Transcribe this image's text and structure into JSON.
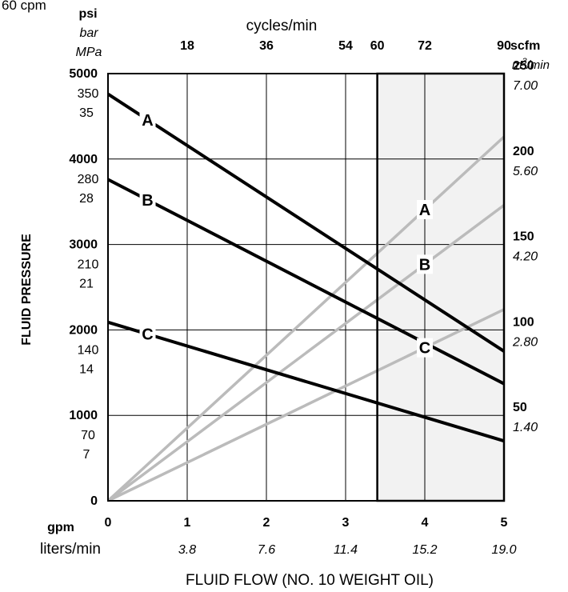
{
  "chart_data": {
    "type": "line",
    "corner_note": "60 cpm",
    "top_axis": {
      "title": "cycles/min",
      "ticks": [
        {
          "label": "18",
          "x": 1
        },
        {
          "label": "36",
          "x": 2
        },
        {
          "label": "54",
          "x": 3
        },
        {
          "label": "60",
          "x": 3.4
        },
        {
          "label": "72",
          "x": 4
        },
        {
          "label": "90",
          "x": 5
        }
      ]
    },
    "x_axis": {
      "title": "FLUID FLOW (NO. 10 WEIGHT OIL)",
      "unit_primary": "gpm",
      "unit_secondary": "liters/min",
      "range": [
        0,
        5
      ],
      "ticks": [
        {
          "value": 0,
          "label": "0",
          "secondary": ""
        },
        {
          "value": 1,
          "label": "1",
          "secondary": "3.8"
        },
        {
          "value": 2,
          "label": "2",
          "secondary": "7.6"
        },
        {
          "value": 3,
          "label": "3",
          "secondary": "11.4"
        },
        {
          "value": 4,
          "label": "4",
          "secondary": "15.2"
        },
        {
          "value": 5,
          "label": "5",
          "secondary": "19.0"
        }
      ]
    },
    "y_left": {
      "title": "FLUID PRESSURE",
      "units": [
        "psi",
        "bar",
        "MPa"
      ],
      "range": [
        0,
        5000
      ],
      "ticks": [
        {
          "value": 0,
          "psi": "0",
          "bar": "",
          "mpa": ""
        },
        {
          "value": 1000,
          "psi": "1000",
          "bar": "70",
          "mpa": "7"
        },
        {
          "value": 2000,
          "psi": "2000",
          "bar": "140",
          "mpa": "14"
        },
        {
          "value": 3000,
          "psi": "3000",
          "bar": "210",
          "mpa": "21"
        },
        {
          "value": 4000,
          "psi": "4000",
          "bar": "280",
          "mpa": "28"
        },
        {
          "value": 5000,
          "psi": "5000",
          "bar": "350",
          "mpa": "35"
        }
      ]
    },
    "y_right": {
      "units": [
        "scfm",
        "m3/min"
      ],
      "range": [
        0,
        250
      ],
      "ticks": [
        {
          "value": 50,
          "scfm": "50",
          "m3": "1.40"
        },
        {
          "value": 100,
          "scfm": "100",
          "m3": "2.80"
        },
        {
          "value": 150,
          "scfm": "150",
          "m3": "4.20"
        },
        {
          "value": 200,
          "scfm": "200",
          "m3": "5.60"
        },
        {
          "value": 250,
          "scfm": "250",
          "m3": "7.00"
        }
      ]
    },
    "shaded_region": {
      "x_from": 3.4,
      "x_to": 5
    },
    "grid": true,
    "series": [
      {
        "name": "A",
        "kind": "pressure",
        "axis": "left",
        "color": "#000000",
        "points": [
          [
            0,
            4760
          ],
          [
            5,
            1750
          ]
        ]
      },
      {
        "name": "B",
        "kind": "pressure",
        "axis": "left",
        "color": "#000000",
        "points": [
          [
            0,
            3760
          ],
          [
            5,
            1370
          ]
        ]
      },
      {
        "name": "C",
        "kind": "pressure",
        "axis": "left",
        "color": "#000000",
        "points": [
          [
            0,
            2090
          ],
          [
            5,
            700
          ]
        ]
      },
      {
        "name": "A",
        "kind": "air",
        "axis": "right",
        "color": "#bbbbbb",
        "points": [
          [
            0,
            0
          ],
          [
            5,
            213
          ]
        ]
      },
      {
        "name": "B",
        "kind": "air",
        "axis": "right",
        "color": "#bbbbbb",
        "points": [
          [
            0,
            0
          ],
          [
            5,
            173
          ]
        ]
      },
      {
        "name": "C",
        "kind": "air",
        "axis": "right",
        "color": "#bbbbbb",
        "points": [
          [
            0,
            0
          ],
          [
            5,
            112
          ]
        ]
      }
    ]
  }
}
